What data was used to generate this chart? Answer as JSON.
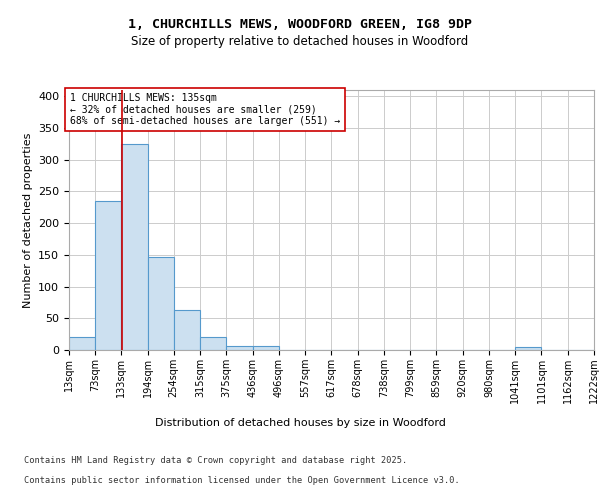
{
  "title_line1": "1, CHURCHILLS MEWS, WOODFORD GREEN, IG8 9DP",
  "title_line2": "Size of property relative to detached houses in Woodford",
  "xlabel": "Distribution of detached houses by size in Woodford",
  "ylabel": "Number of detached properties",
  "footer_line1": "Contains HM Land Registry data © Crown copyright and database right 2025.",
  "footer_line2": "Contains public sector information licensed under the Open Government Licence v3.0.",
  "annotation_line1": "1 CHURCHILLS MEWS: 135sqm",
  "annotation_line2": "← 32% of detached houses are smaller (259)",
  "annotation_line3": "68% of semi-detached houses are larger (551) →",
  "property_size": 135,
  "bin_edges": [
    13,
    73,
    133,
    194,
    254,
    315,
    375,
    436,
    496,
    557,
    617,
    678,
    738,
    799,
    859,
    920,
    980,
    1041,
    1101,
    1162,
    1222
  ],
  "bin_heights": [
    20,
    235,
    325,
    147,
    63,
    20,
    7,
    6,
    0,
    0,
    0,
    0,
    0,
    0,
    0,
    0,
    0,
    4,
    0,
    0
  ],
  "bar_facecolor": "#cce0f0",
  "bar_edgecolor": "#5599cc",
  "grid_color": "#cccccc",
  "vline_color": "#cc0000",
  "vline_x": 135,
  "annotation_box_edgecolor": "#cc0000",
  "annotation_box_facecolor": "#ffffff",
  "ylim": [
    0,
    410
  ],
  "yticks": [
    0,
    50,
    100,
    150,
    200,
    250,
    300,
    350,
    400
  ],
  "background_color": "#ffffff",
  "plot_background": "#ffffff"
}
